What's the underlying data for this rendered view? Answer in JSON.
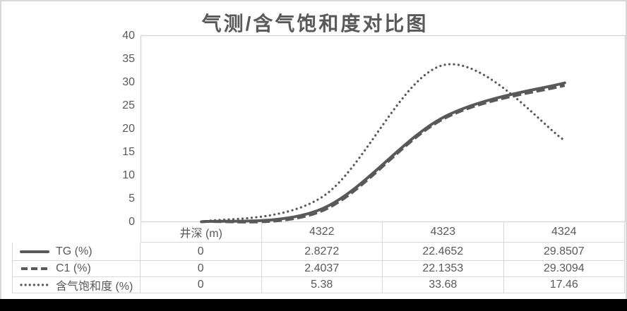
{
  "chart": {
    "title": "气测/含气饱和度对比图",
    "colors": {
      "series": "#595959",
      "plot_border": "#d9d9d9",
      "table_border": "#d9d9d9",
      "text": "#595959",
      "frame_border": "#d9d9d9",
      "bottom_bar": "#000000"
    },
    "y_axis": {
      "min": 0,
      "max": 40,
      "step": 5,
      "tick_labels": [
        "40",
        "35",
        "30",
        "25",
        "20",
        "15",
        "10",
        "5",
        "0"
      ]
    }
  },
  "chart_data": {
    "type": "line",
    "smooth": true,
    "grid": false,
    "title": "气测/含气饱和度对比图",
    "xlabel": "",
    "ylabel": "",
    "ylim": [
      0,
      40
    ],
    "legend_position": "data-table-left",
    "categories": [
      "井深 (m)",
      "4322",
      "4323",
      "4324"
    ],
    "series": [
      {
        "name": "TG (%)",
        "style": "solid",
        "values": [
          0,
          2.8272,
          22.4652,
          29.8507
        ]
      },
      {
        "name": "C1 (%)",
        "style": "dashed",
        "values": [
          0,
          2.4037,
          22.1353,
          29.3094
        ]
      },
      {
        "name": "含气饱和度 (%)",
        "style": "dotted",
        "values": [
          0,
          5.38,
          33.68,
          17.46
        ]
      }
    ]
  },
  "table": {
    "header": [
      "井深 (m)",
      "4322",
      "4323",
      "4324"
    ],
    "rows": [
      {
        "legend": "TG (%)",
        "style": "solid",
        "cells": [
          "0",
          "2.8272",
          "22.4652",
          "29.8507"
        ]
      },
      {
        "legend": "C1 (%)",
        "style": "dashed",
        "cells": [
          "0",
          "2.4037",
          "22.1353",
          "29.3094"
        ]
      },
      {
        "legend": "含气饱和度 (%)",
        "style": "dotted",
        "cells": [
          "0",
          "5.38",
          "33.68",
          "17.46"
        ]
      }
    ]
  }
}
